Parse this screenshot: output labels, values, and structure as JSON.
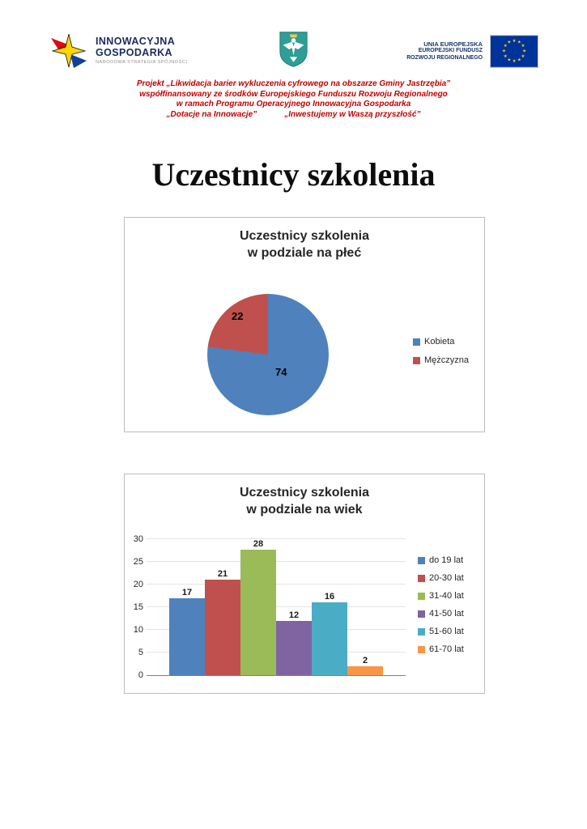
{
  "header": {
    "logo_left": {
      "line1": "INNOWACYJNA",
      "line2": "GOSPODARKA",
      "tagline": "NARODOWA STRATEGIA SPÓJNOŚCI"
    },
    "logo_right": {
      "line1": "UNIA EUROPEJSKA",
      "line2": "EUROPEJSKI FUNDUSZ",
      "line3": "ROZWOJU REGIONALNEGO"
    }
  },
  "project_note": {
    "color": "#C00000",
    "line1": "Projekt „Likwidacja barier wykluczenia cyfrowego na obszarze Gminy Jastrzębia”",
    "line2": "współfinansowany ze środków Europejskiego Funduszu Rozwoju Regionalnego",
    "line3": "w ramach Programu Operacyjnego Innowacyjna Gospodarka",
    "line4a": "„Dotacje na Innowacje”",
    "line4b": "„Inwestujemy w Waszą przyszłość”"
  },
  "page_title": "Uczestnicy szkolenia",
  "chart_data": [
    {
      "type": "pie",
      "title_line1": "Uczestnicy szkolenia",
      "title_line2": "w podziale na płeć",
      "labels": [
        "Kobieta",
        "Mężczyzna"
      ],
      "values": [
        74,
        22
      ],
      "colors": [
        "#4F81BD",
        "#C0504D"
      ],
      "legend_position": "right"
    },
    {
      "type": "bar",
      "title_line1": "Uczestnicy szkolenia",
      "title_line2": "w podziale na wiek",
      "categories": [
        "do 19 lat",
        "20-30 lat",
        "31-40 lat",
        "41-50 lat",
        "51-60 lat",
        "61-70 lat"
      ],
      "values": [
        17,
        21,
        28,
        12,
        16,
        2
      ],
      "colors": [
        "#4F81BD",
        "#C0504D",
        "#9BBB59",
        "#8064A2",
        "#4BACC6",
        "#F79646"
      ],
      "ylim": [
        0,
        30
      ],
      "yticks": [
        0,
        5,
        10,
        15,
        20,
        25,
        30
      ],
      "grid": true,
      "legend_position": "right"
    }
  ]
}
